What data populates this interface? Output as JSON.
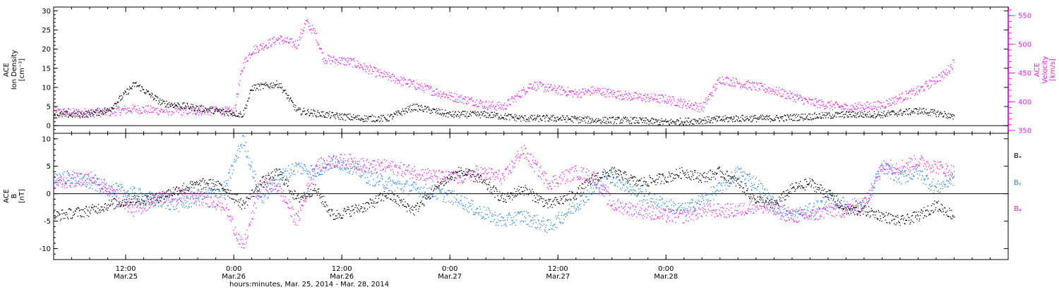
{
  "chart_data": [
    {
      "type": "scatter",
      "panel": "top",
      "left_axis": {
        "label_lines": [
          "ACE",
          "Ion Density",
          "[cm⁻³]"
        ],
        "ylim": [
          -2,
          31
        ],
        "ticks": [
          0,
          5,
          10,
          15,
          20,
          25,
          30
        ]
      },
      "right_axis": {
        "label_lines": [
          "ACE",
          "Velocity",
          "[km/s]"
        ],
        "color": "#e11be1",
        "ylim": [
          345,
          565
        ],
        "ticks": [
          350,
          400,
          450,
          500,
          550
        ]
      },
      "reference_line": {
        "axis": "left",
        "y": 0
      },
      "series": [
        {
          "color": "#000000",
          "axis": "left",
          "x_hours": [
            0,
            3,
            6,
            9,
            12,
            15,
            18,
            21,
            22,
            25,
            27,
            30,
            34,
            37,
            40,
            44,
            48,
            52,
            56,
            60,
            64,
            68,
            72,
            76,
            80,
            84,
            88,
            92,
            96,
            99,
            100
          ],
          "values": [
            3,
            3,
            4,
            11,
            6,
            5,
            4,
            3,
            10,
            11,
            4,
            3,
            2,
            2,
            5,
            3,
            3,
            2,
            2,
            1.5,
            1.5,
            1,
            1.5,
            2,
            2,
            2.5,
            3,
            3,
            4,
            3,
            2
          ]
        },
        {
          "color": "#e11be1",
          "axis": "right",
          "x_hours": [
            0,
            3,
            6,
            9,
            12,
            15,
            18,
            20,
            21,
            22,
            25,
            27,
            28,
            29,
            30,
            33,
            36,
            40,
            44,
            47,
            48,
            50,
            53,
            58,
            60,
            64,
            68,
            72,
            74,
            80,
            84,
            88,
            92,
            96,
            99,
            100
          ],
          "values": [
            383,
            381,
            383,
            388,
            385,
            385,
            385,
            383,
            465,
            490,
            510,
            500,
            540,
            520,
            475,
            470,
            450,
            430,
            410,
            400,
            395,
            392,
            430,
            415,
            420,
            410,
            405,
            390,
            440,
            420,
            400,
            390,
            395,
            420,
            450,
            470
          ]
        }
      ]
    },
    {
      "type": "scatter",
      "panel": "bottom",
      "left_axis": {
        "label_lines": [
          "ACE",
          "B",
          "[nT]"
        ],
        "ylim": [
          -12,
          11
        ],
        "ticks": [
          -10,
          -5,
          0,
          5,
          10
        ]
      },
      "reference_line": {
        "axis": "left",
        "y": 0
      },
      "x_axis": {
        "xlim_hours": [
          0,
          106
        ],
        "ticks": [
          {
            "hours": 8,
            "time": "12:00",
            "date": "Mar.25"
          },
          {
            "hours": 20,
            "time": "0:00",
            "date": "Mar.26"
          },
          {
            "hours": 32,
            "time": "12:00",
            "date": "Mar.26"
          },
          {
            "hours": 44,
            "time": "0:00",
            "date": "Mar.27"
          },
          {
            "hours": 56,
            "time": "12:00",
            "date": "Mar.27"
          },
          {
            "hours": 68,
            "time": "0:00",
            "date": "Mar.28"
          }
        ],
        "xlabel": "hours:minutes, Mar. 25, 2014 - Mar. 28, 2014"
      },
      "series": [
        {
          "name": "Bₓ",
          "color": "#000000",
          "x_hours": [
            0,
            2,
            4,
            6,
            9,
            11,
            14,
            17,
            19,
            21,
            23,
            25,
            27,
            29,
            31,
            33,
            35,
            37,
            40,
            43,
            45,
            47,
            50,
            52,
            55,
            58,
            60,
            62,
            65,
            68,
            70,
            72,
            74,
            76,
            78,
            80,
            82,
            84,
            86,
            88,
            90,
            92,
            94,
            96,
            98,
            100
          ],
          "values": [
            -4,
            -3.5,
            -3,
            -2,
            -1,
            -1,
            1,
            2,
            1,
            -2,
            2,
            4,
            -1,
            1,
            -4,
            -3,
            -2,
            0,
            -3,
            2,
            4,
            3,
            -1,
            1,
            -2,
            0,
            3,
            4,
            2,
            3,
            4,
            3,
            4,
            2,
            -1,
            -2,
            1,
            2,
            0,
            -3,
            -3,
            -4,
            -5,
            -4,
            -2,
            -4
          ]
        },
        {
          "name": "Bᵧ",
          "color": "#1f7fdc",
          "x_hours": [
            0,
            2,
            4,
            6,
            9,
            11,
            14,
            17,
            19,
            21,
            23,
            25,
            27,
            29,
            31,
            33,
            35,
            37,
            40,
            43,
            45,
            47,
            50,
            52,
            55,
            58,
            60,
            62,
            65,
            68,
            70,
            72,
            74,
            76,
            78,
            80,
            82,
            84,
            86,
            88,
            90,
            92,
            94,
            96,
            98,
            100
          ],
          "values": [
            3,
            3,
            2,
            1,
            0,
            -1,
            -2,
            0,
            1,
            10,
            -1,
            3,
            5,
            4,
            6,
            5,
            3,
            2,
            1,
            0,
            -1,
            -3,
            -5,
            -4,
            -6,
            -2,
            1,
            3,
            0,
            -2,
            -3,
            -1,
            1,
            4,
            2,
            -2,
            -4,
            -3,
            -1,
            -2,
            -2,
            5,
            3,
            4,
            1,
            3
          ]
        },
        {
          "name": "Bᵩ",
          "color": "#e11be1",
          "x_hours": [
            0,
            2,
            4,
            6,
            9,
            11,
            14,
            17,
            19,
            21,
            23,
            25,
            27,
            29,
            31,
            33,
            35,
            37,
            40,
            43,
            45,
            47,
            50,
            52,
            55,
            58,
            60,
            62,
            65,
            68,
            70,
            72,
            74,
            76,
            78,
            80,
            82,
            84,
            86,
            88,
            90,
            92,
            94,
            96,
            98,
            100
          ],
          "values": [
            2,
            2.5,
            3,
            1,
            -3,
            -1,
            0,
            -1,
            -2,
            -10,
            2,
            1,
            -5,
            5,
            6,
            6,
            5,
            5,
            4,
            3,
            3,
            4,
            3,
            8,
            2,
            4,
            3,
            -2,
            -3,
            -4,
            -4,
            -3,
            -3,
            -3,
            -2,
            -3,
            -4,
            -4,
            -3,
            -3,
            -2,
            5,
            5,
            6,
            5,
            4
          ]
        }
      ]
    }
  ]
}
